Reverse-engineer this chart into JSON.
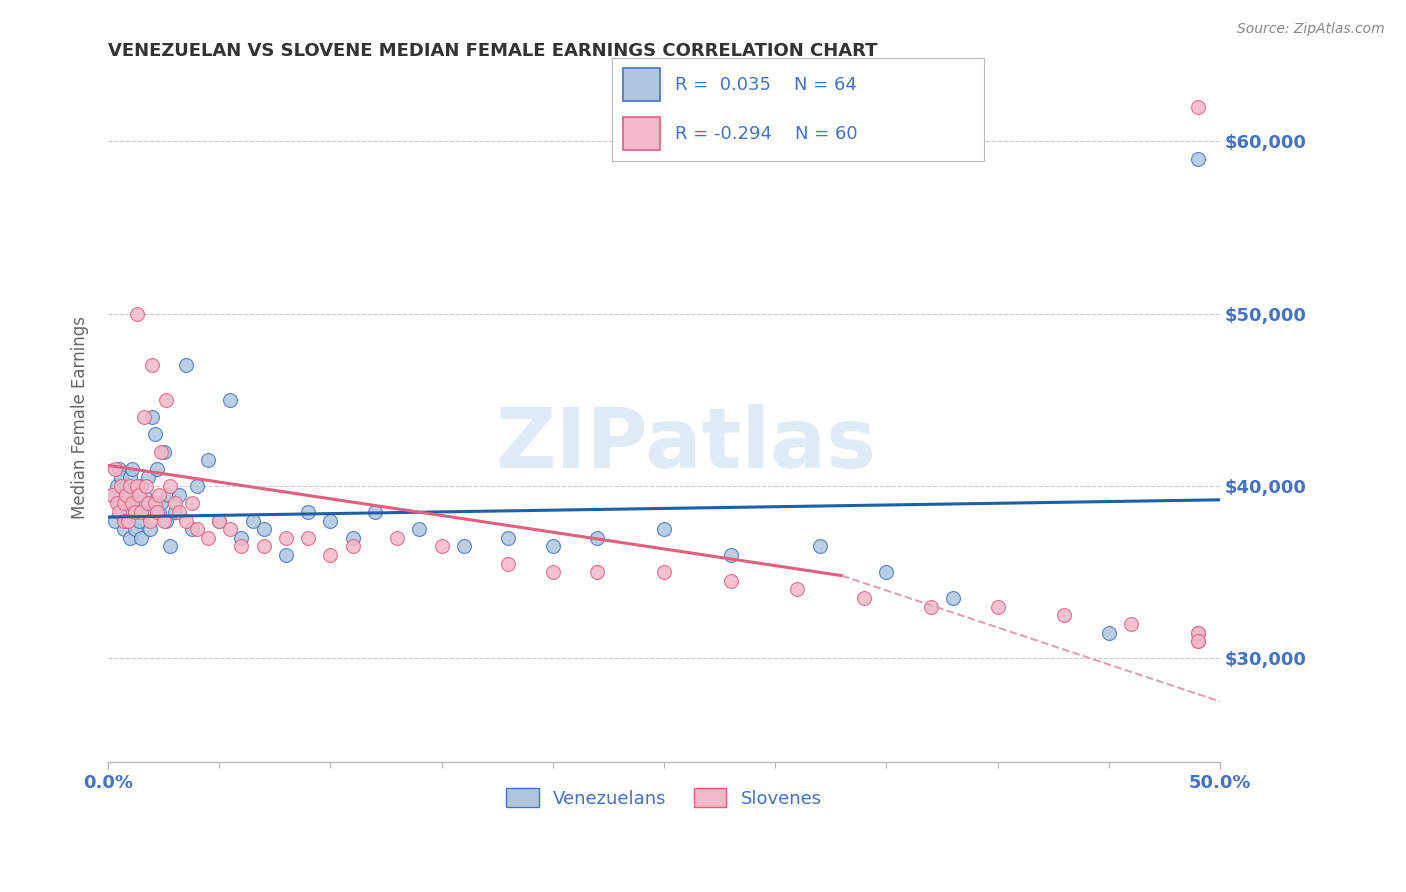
{
  "title": "VENEZUELAN VS SLOVENE MEDIAN FEMALE EARNINGS CORRELATION CHART",
  "source": "Source: ZipAtlas.com",
  "ylabel": "Median Female Earnings",
  "xlim": [
    0.0,
    0.5
  ],
  "ylim": [
    24000,
    64000
  ],
  "yticks": [
    30000,
    40000,
    50000,
    60000
  ],
  "ytick_labels": [
    "$30,000",
    "$40,000",
    "$50,000",
    "$60,000"
  ],
  "xticks": [
    0.0,
    0.5
  ],
  "xtick_labels": [
    "0.0%",
    "50.0%"
  ],
  "venezuelan_color": "#aec6e0",
  "venezuelan_edge": "#4472c4",
  "slovene_color": "#f4b8c8",
  "slovene_edge": "#e06080",
  "trend_ven_color": "#1f5fa6",
  "trend_slo_solid_color": "#e06080",
  "trend_slo_dash_color": "#e0a0b0",
  "R_venezuelan": 0.035,
  "N_venezuelan": 64,
  "R_slovene": -0.294,
  "N_slovene": 60,
  "legend_label_venezuelan": "Venezuelans",
  "legend_label_slovene": "Slovenes",
  "background_color": "#ffffff",
  "grid_color": "#cccccc",
  "axis_color": "#4472c4",
  "watermark": "ZIPatlas",
  "trend_ven_x0": 0.0,
  "trend_ven_y0": 38200,
  "trend_ven_x1": 0.5,
  "trend_ven_y1": 39200,
  "trend_slo_x0": 0.0,
  "trend_slo_y0": 41200,
  "trend_slo_solid_x1": 0.33,
  "trend_slo_solid_y1": 34800,
  "trend_slo_dash_x1": 0.5,
  "trend_slo_dash_y1": 27500,
  "venezuelan_x": [
    0.002,
    0.003,
    0.004,
    0.005,
    0.005,
    0.006,
    0.006,
    0.007,
    0.007,
    0.008,
    0.008,
    0.009,
    0.009,
    0.01,
    0.01,
    0.011,
    0.011,
    0.012,
    0.012,
    0.013,
    0.014,
    0.015,
    0.015,
    0.016,
    0.017,
    0.018,
    0.019,
    0.02,
    0.021,
    0.022,
    0.023,
    0.024,
    0.025,
    0.026,
    0.027,
    0.028,
    0.03,
    0.032,
    0.035,
    0.038,
    0.04,
    0.045,
    0.05,
    0.055,
    0.06,
    0.065,
    0.07,
    0.08,
    0.09,
    0.1,
    0.11,
    0.12,
    0.14,
    0.16,
    0.18,
    0.2,
    0.22,
    0.25,
    0.28,
    0.32,
    0.35,
    0.38,
    0.45,
    0.49
  ],
  "venezuelan_y": [
    39500,
    38000,
    40000,
    39000,
    41000,
    38500,
    40500,
    39000,
    37500,
    38000,
    40000,
    39500,
    38500,
    40500,
    37000,
    39000,
    41000,
    38500,
    37500,
    39500,
    38000,
    40000,
    37000,
    39500,
    38500,
    40500,
    37500,
    44000,
    43000,
    41000,
    38500,
    39000,
    42000,
    38000,
    39500,
    36500,
    38500,
    39500,
    47000,
    37500,
    40000,
    41500,
    38000,
    45000,
    37000,
    38000,
    37500,
    36000,
    38500,
    38000,
    37000,
    38500,
    37500,
    36500,
    37000,
    36500,
    37000,
    37500,
    36000,
    36500,
    35000,
    33500,
    31500,
    59000
  ],
  "slovene_x": [
    0.002,
    0.003,
    0.004,
    0.005,
    0.006,
    0.007,
    0.007,
    0.008,
    0.009,
    0.01,
    0.011,
    0.012,
    0.013,
    0.013,
    0.014,
    0.015,
    0.016,
    0.017,
    0.018,
    0.019,
    0.02,
    0.021,
    0.022,
    0.023,
    0.024,
    0.025,
    0.026,
    0.028,
    0.03,
    0.032,
    0.035,
    0.038,
    0.04,
    0.045,
    0.05,
    0.055,
    0.06,
    0.07,
    0.08,
    0.09,
    0.1,
    0.11,
    0.13,
    0.15,
    0.18,
    0.2,
    0.22,
    0.25,
    0.28,
    0.31,
    0.34,
    0.37,
    0.4,
    0.43,
    0.46,
    0.49,
    0.49,
    0.49,
    0.49,
    0.49
  ],
  "slovene_y": [
    39500,
    41000,
    39000,
    38500,
    40000,
    39000,
    38000,
    39500,
    38000,
    40000,
    39000,
    38500,
    50000,
    40000,
    39500,
    38500,
    44000,
    40000,
    39000,
    38000,
    47000,
    39000,
    38500,
    39500,
    42000,
    38000,
    45000,
    40000,
    39000,
    38500,
    38000,
    39000,
    37500,
    37000,
    38000,
    37500,
    36500,
    36500,
    37000,
    37000,
    36000,
    36500,
    37000,
    36500,
    35500,
    35000,
    35000,
    35000,
    34500,
    34000,
    33500,
    33000,
    33000,
    32500,
    32000,
    31500,
    31000,
    31500,
    31000,
    62000
  ]
}
